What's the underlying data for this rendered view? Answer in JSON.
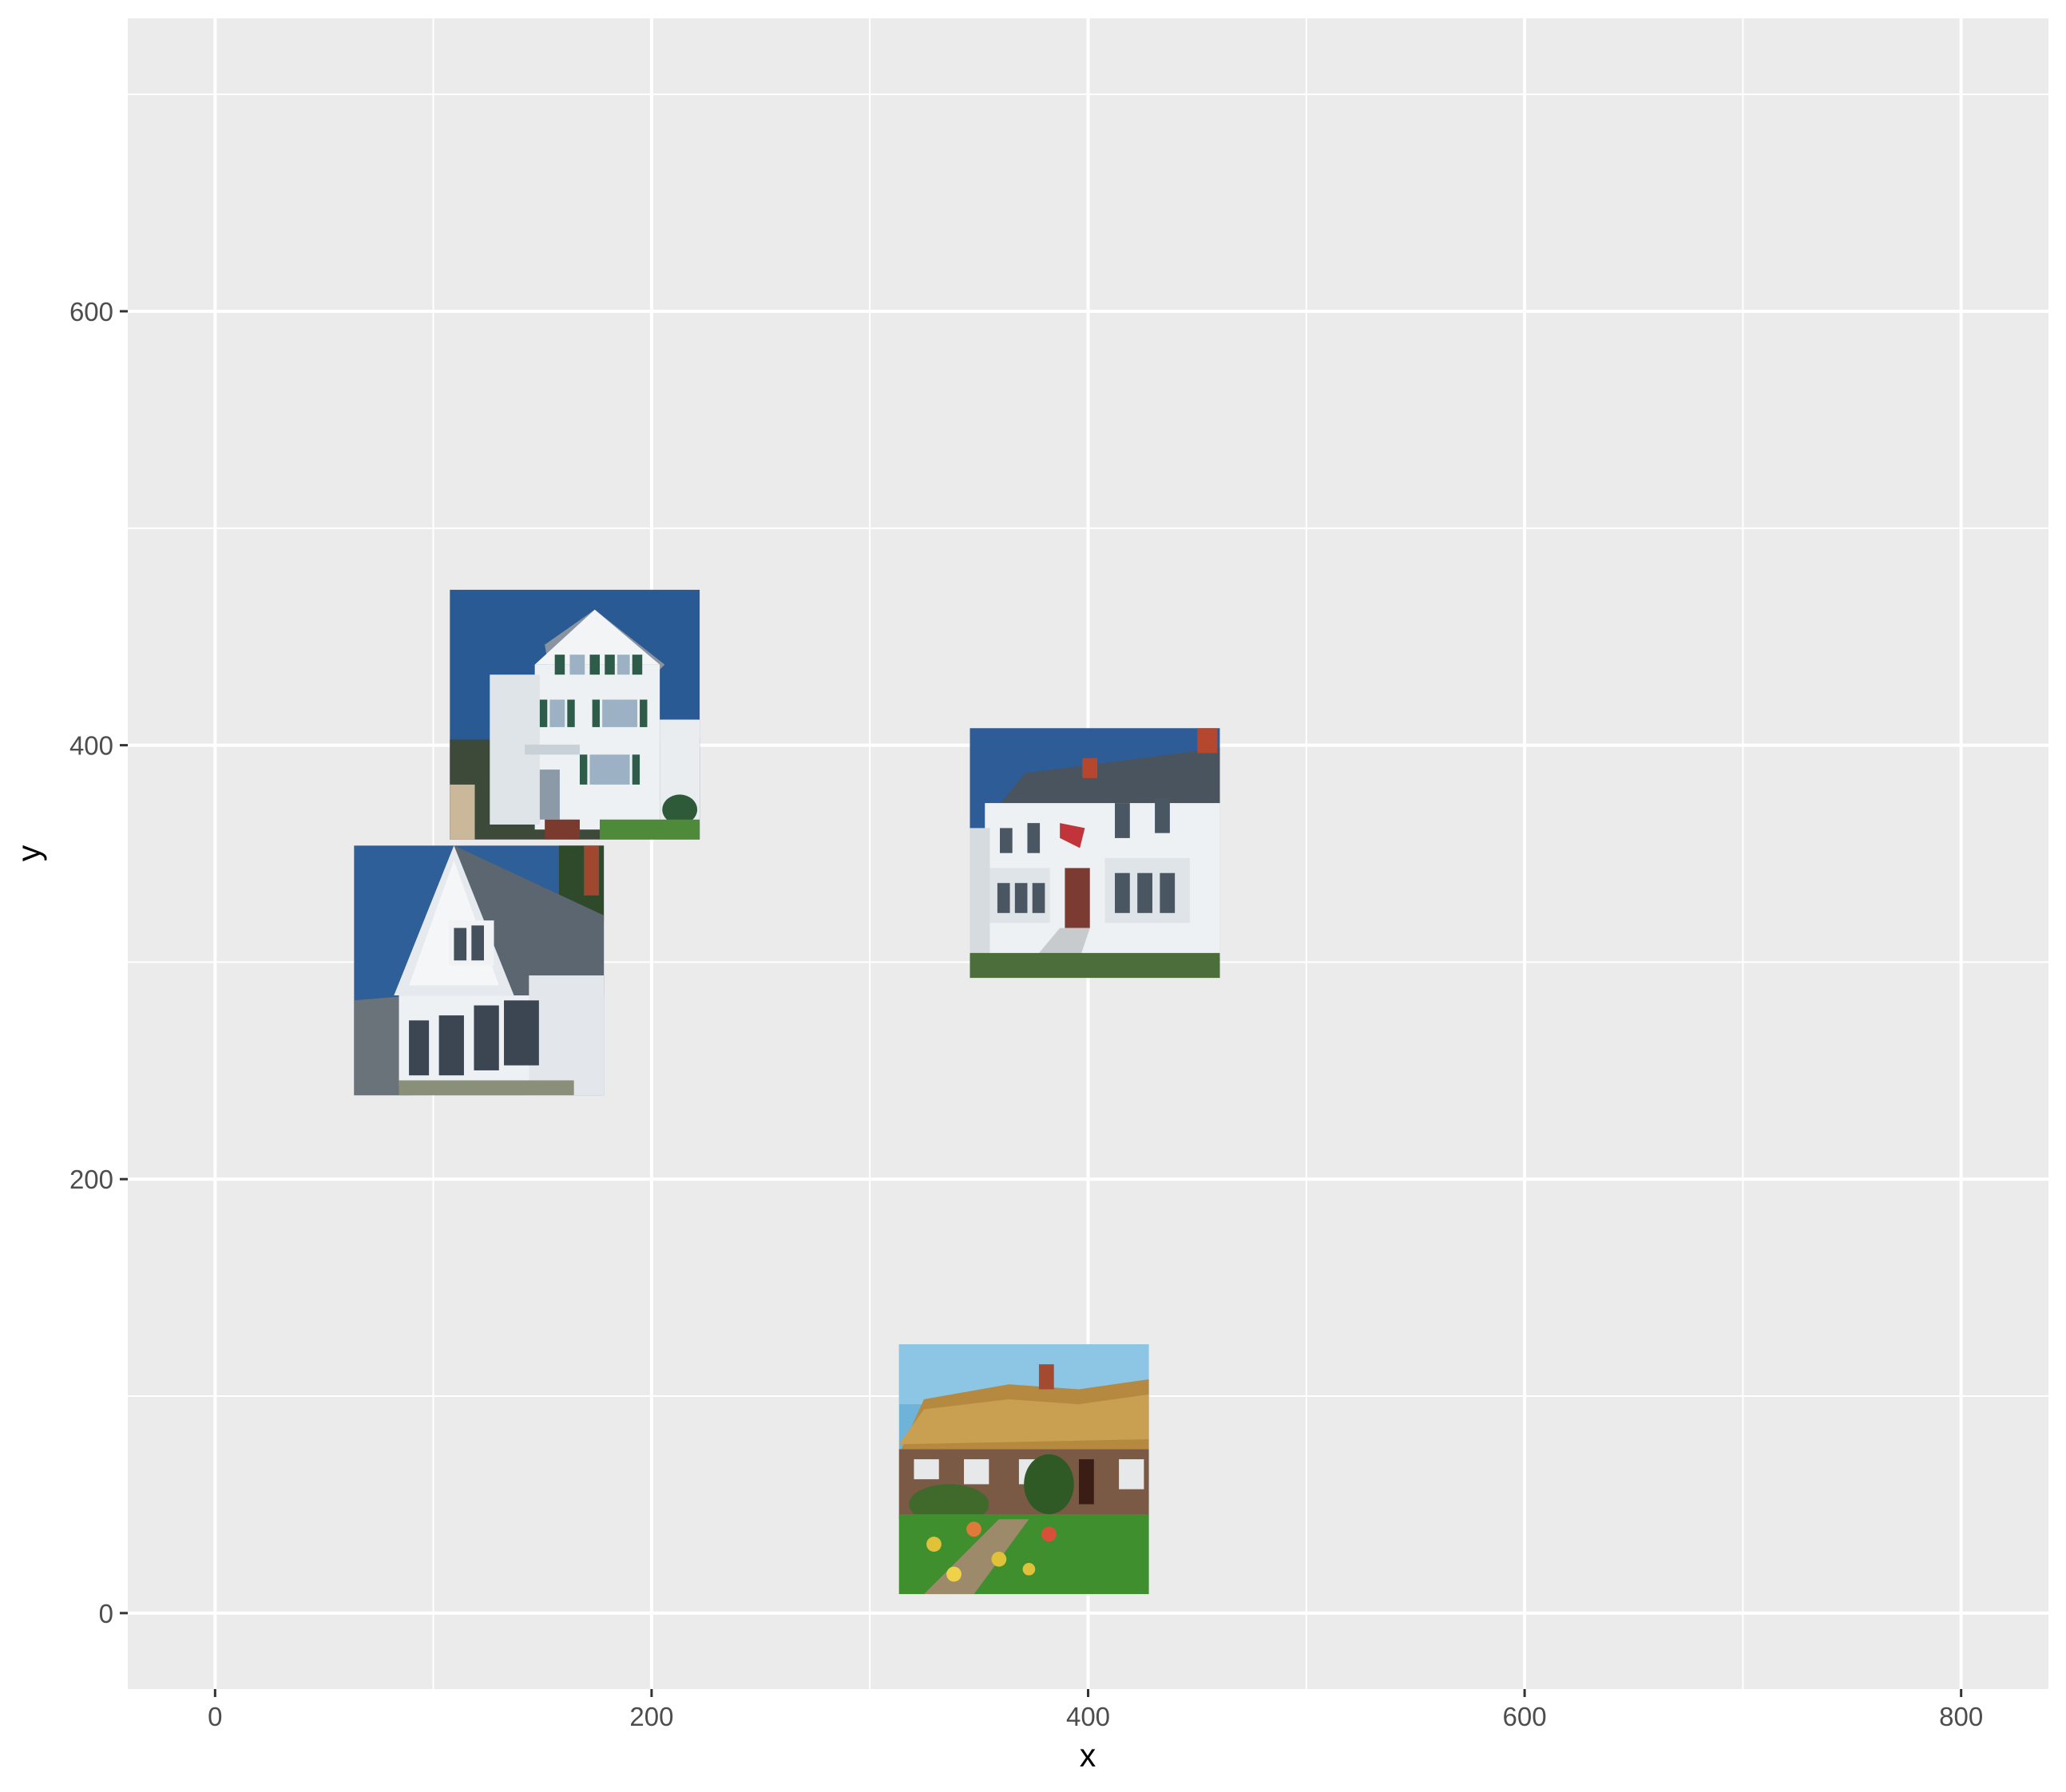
{
  "chart_data": {
    "type": "scatter",
    "marker": "image-thumbnail",
    "xlabel": "x",
    "ylabel": "y",
    "xlim": [
      -40,
      840
    ],
    "ylim": [
      -35,
      735
    ],
    "x_ticks": [
      0,
      200,
      400,
      600,
      800
    ],
    "y_ticks": [
      0,
      200,
      400,
      600
    ],
    "x_tick_labels": [
      "0",
      "200",
      "400",
      "600",
      "800"
    ],
    "y_tick_labels": [
      "0",
      "200",
      "400",
      "600"
    ],
    "grid": true,
    "legend": "none",
    "colors": {
      "panel_background": "#ebebeb",
      "grid_line": "#ffffff",
      "tick_text": "#4d4d4d",
      "axis_title": "#000000"
    },
    "points": [
      {
        "x": 164.8,
        "y": 414.1,
        "icon": "white-three-story-house-green-shutters-icon"
      },
      {
        "x": 120.9,
        "y": 296.2,
        "icon": "white-gabled-house-bay-window-icon"
      },
      {
        "x": 403.1,
        "y": 350.3,
        "icon": "white-colonial-house-with-flag-icon"
      },
      {
        "x": 370.6,
        "y": 66.3,
        "icon": "thatched-roof-cottage-garden-icon"
      }
    ]
  }
}
